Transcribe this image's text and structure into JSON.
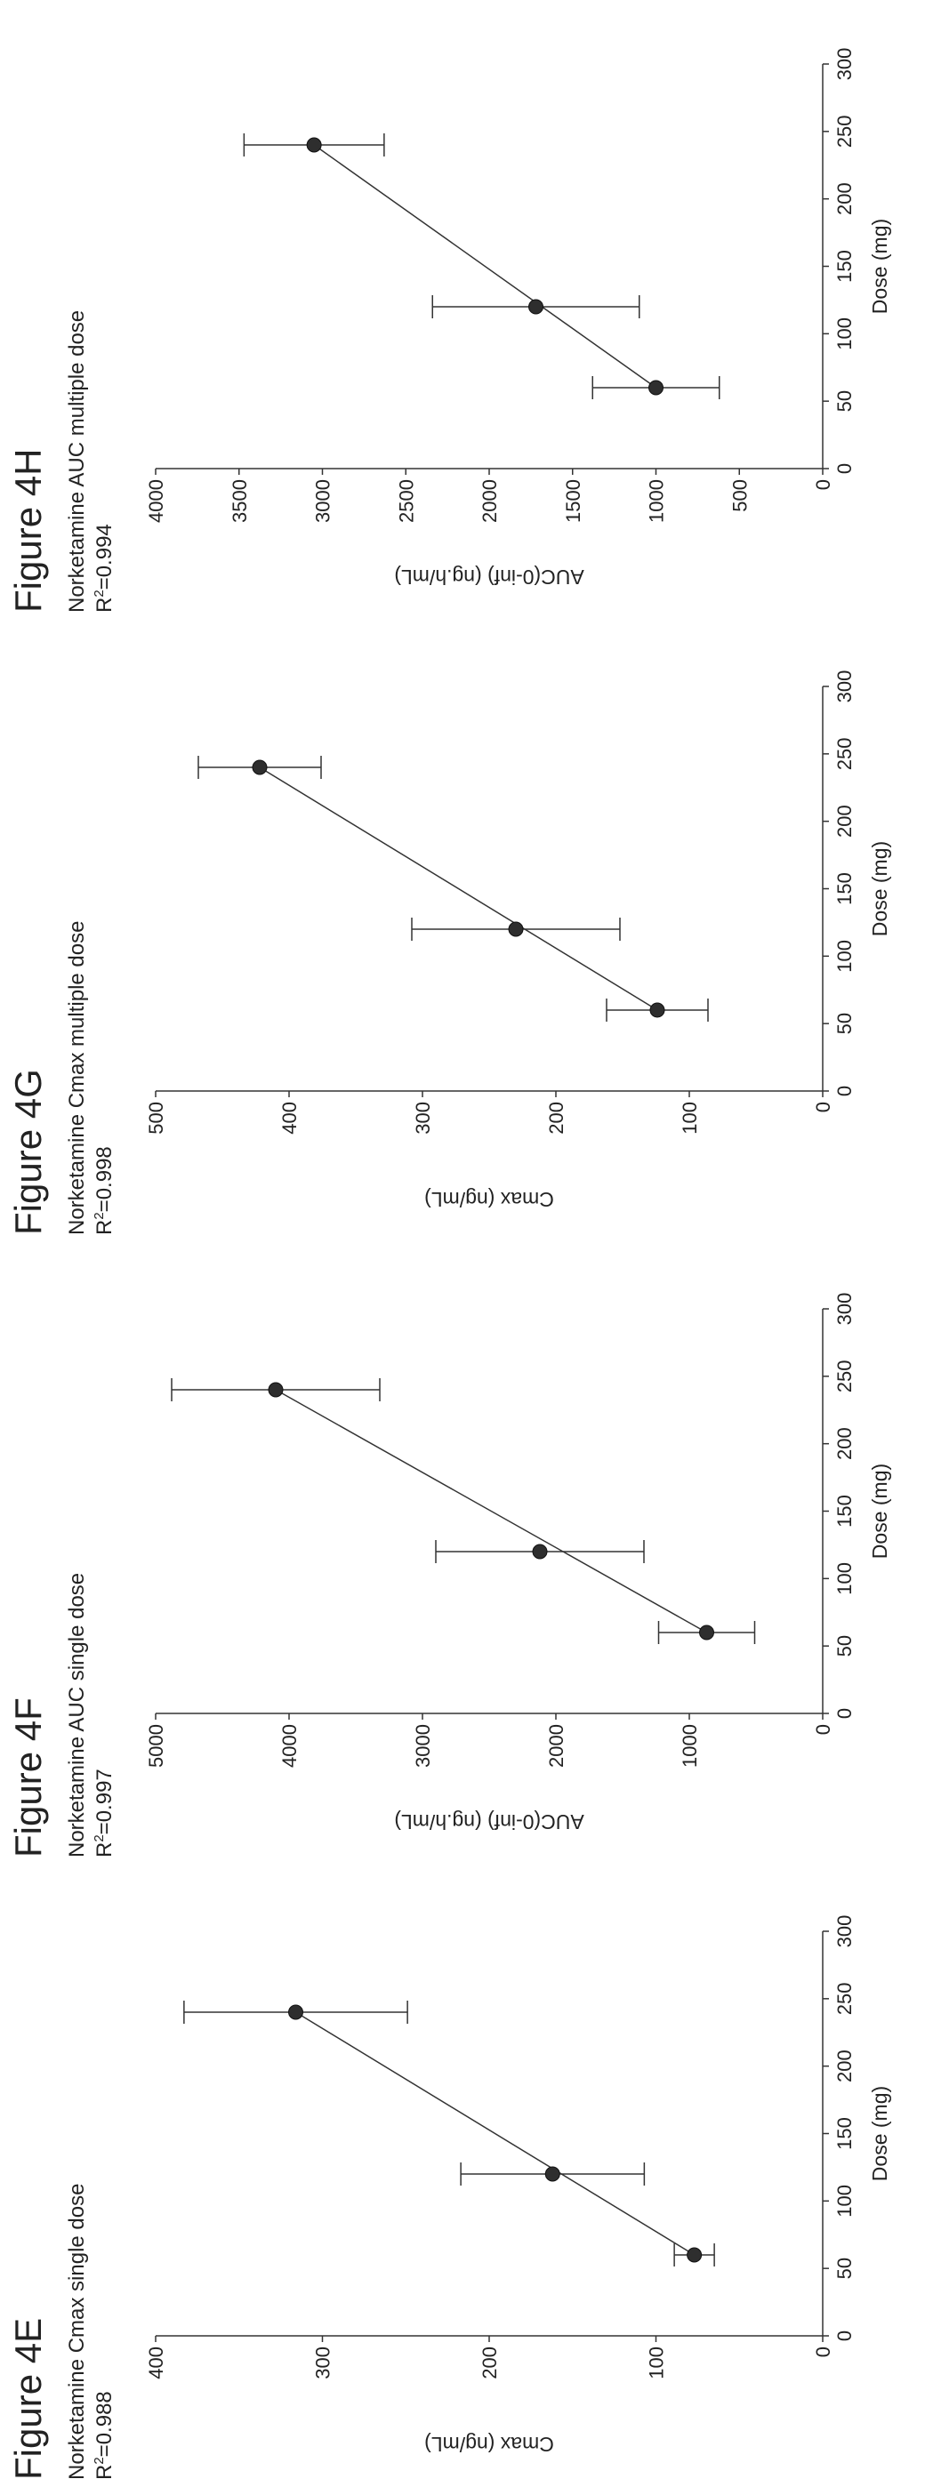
{
  "chart_data": [
    {
      "type": "scatter",
      "figure_label": "Figure 4E",
      "title": "Norketamine Cmax single dose",
      "r2_label": "R",
      "r2_exp": "2",
      "r2_value": "=0.988",
      "xlabel": "Dose (mg)",
      "ylabel": "Cmax (ng/mL)",
      "xlim": [
        0,
        300
      ],
      "ylim": [
        0,
        400
      ],
      "xticks": [
        0,
        50,
        100,
        150,
        200,
        250,
        300
      ],
      "yticks": [
        0,
        100,
        200,
        300,
        400
      ],
      "points": [
        {
          "x": 60,
          "y": 77,
          "err": 12
        },
        {
          "x": 120,
          "y": 162,
          "err": 55
        },
        {
          "x": 240,
          "y": 316,
          "err": 67
        }
      ],
      "regression_line": true,
      "grid": false,
      "legend": "none"
    },
    {
      "type": "scatter",
      "figure_label": "Figure 4F",
      "title": "Norketamine AUC single dose",
      "r2_label": "R",
      "r2_exp": "2",
      "r2_value": "=0.997",
      "xlabel": "Dose (mg)",
      "ylabel": "AUC(0-inf) (ng.h/mL)",
      "xlim": [
        0,
        300
      ],
      "ylim": [
        0,
        5000
      ],
      "xticks": [
        0,
        50,
        100,
        150,
        200,
        250,
        300
      ],
      "yticks": [
        0,
        1000,
        2000,
        3000,
        4000,
        5000
      ],
      "points": [
        {
          "x": 60,
          "y": 870,
          "err": 360
        },
        {
          "x": 120,
          "y": 2120,
          "err": 780
        },
        {
          "x": 240,
          "y": 4100,
          "err": 780
        }
      ],
      "regression_line": true,
      "grid": false,
      "legend": "none"
    },
    {
      "type": "scatter",
      "figure_label": "Figure 4G",
      "title": "Norketamine Cmax multiple dose",
      "r2_label": "R",
      "r2_exp": "2",
      "r2_value": "=0.998",
      "xlabel": "Dose (mg)",
      "ylabel": "Cmax (ng/mL)",
      "xlim": [
        0,
        300
      ],
      "ylim": [
        0,
        500
      ],
      "xticks": [
        0,
        50,
        100,
        150,
        200,
        250,
        300
      ],
      "yticks": [
        0,
        100,
        200,
        300,
        400,
        500
      ],
      "points": [
        {
          "x": 60,
          "y": 124,
          "err": 38
        },
        {
          "x": 120,
          "y": 230,
          "err": 78
        },
        {
          "x": 240,
          "y": 422,
          "err": 46
        }
      ],
      "regression_line": true,
      "grid": false,
      "legend": "none"
    },
    {
      "type": "scatter",
      "figure_label": "Figure 4H",
      "title": "Norketamine AUC multiple dose",
      "r2_label": "R",
      "r2_exp": "2",
      "r2_value": "=0.994",
      "xlabel": "Dose (mg)",
      "ylabel": "AUC(0-inf) (ng.h/mL)",
      "xlim": [
        0,
        300
      ],
      "ylim": [
        0,
        4000
      ],
      "xticks": [
        0,
        50,
        100,
        150,
        200,
        250,
        300
      ],
      "yticks": [
        0,
        500,
        1000,
        1500,
        2000,
        2500,
        3000,
        3500,
        4000
      ],
      "ytick_labels": [
        "0",
        "500",
        "1000",
        "1500",
        "2000",
        "2500",
        "3000",
        "3500",
        "4000"
      ],
      "points": [
        {
          "x": 60,
          "y": 1000,
          "err": 380
        },
        {
          "x": 120,
          "y": 1720,
          "err": 620
        },
        {
          "x": 240,
          "y": 3050,
          "err": 420
        }
      ],
      "regression_line": true,
      "grid": false,
      "legend": "none"
    }
  ]
}
